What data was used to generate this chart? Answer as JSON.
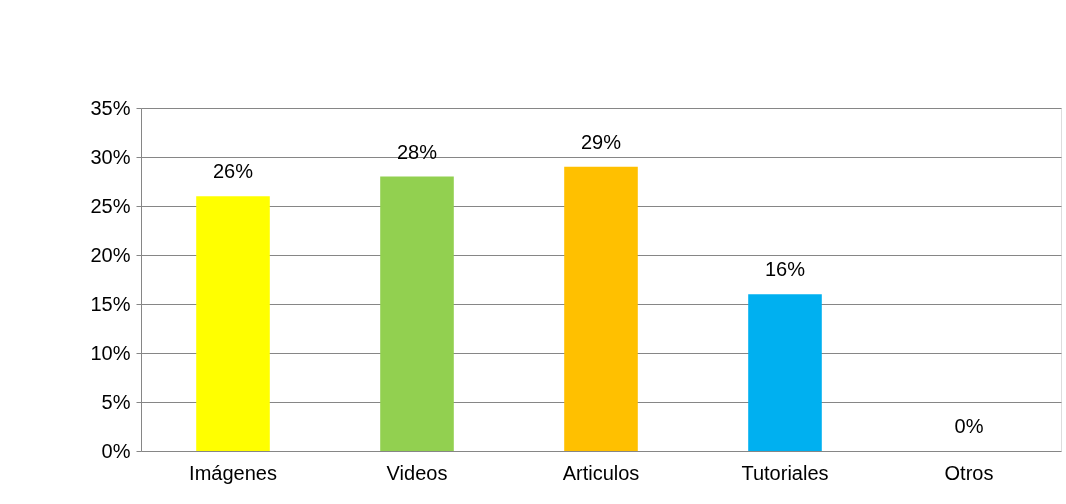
{
  "chart_data": {
    "type": "bar",
    "categories": [
      "Imágenes",
      "Videos",
      "Articulos",
      "Tutoriales",
      "Otros"
    ],
    "values": [
      26,
      28,
      29,
      16,
      0
    ],
    "colors": [
      "#ffff00",
      "#92d050",
      "#ffc000",
      "#00b0f0",
      "#a5a5a5"
    ],
    "value_labels": [
      "26%",
      "28%",
      "29%",
      "16%",
      "0%"
    ],
    "ylim": [
      0,
      35
    ],
    "yticks": [
      {
        "value": 0,
        "label": "0%"
      },
      {
        "value": 5,
        "label": "5%"
      },
      {
        "value": 10,
        "label": "10%"
      },
      {
        "value": 15,
        "label": "15%"
      },
      {
        "value": 20,
        "label": "20%"
      },
      {
        "value": 25,
        "label": "25%"
      },
      {
        "value": 30,
        "label": "30%"
      },
      {
        "value": 35,
        "label": "35%"
      }
    ],
    "grid": "y"
  }
}
